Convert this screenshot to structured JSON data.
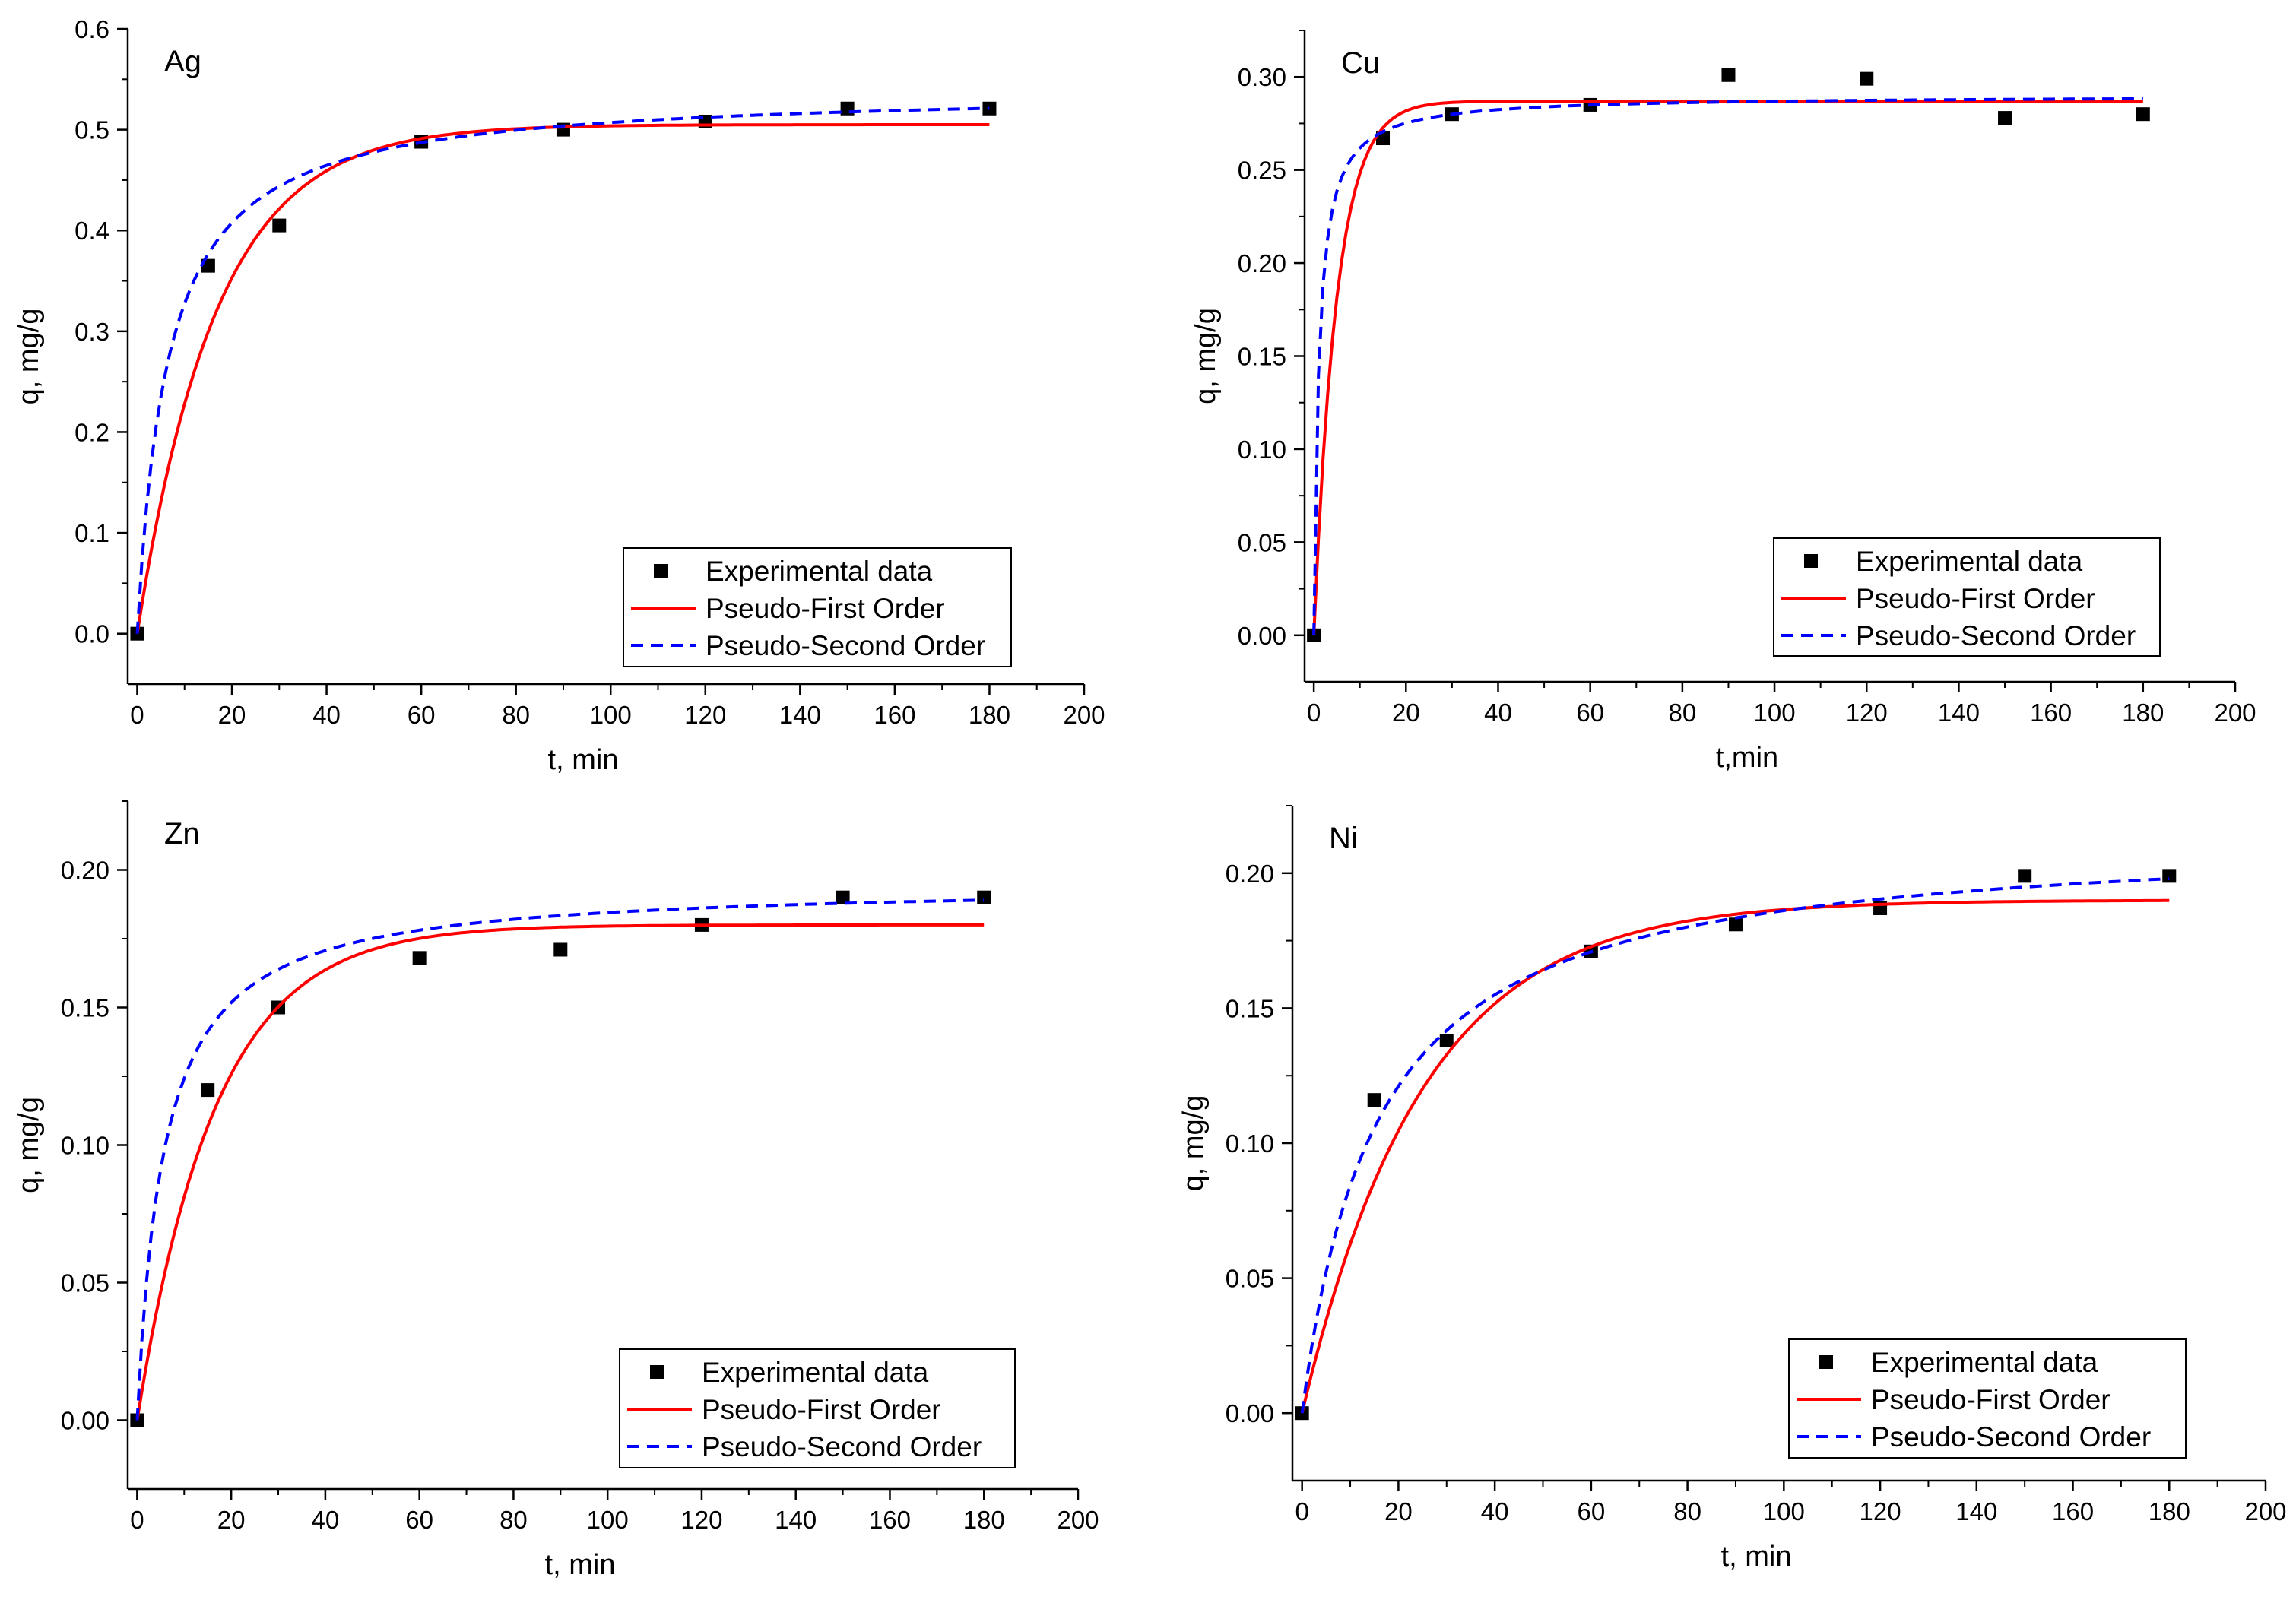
{
  "chart_data": [
    {
      "type": "scatter",
      "title": "Ag",
      "xlabel": "t, min",
      "ylabel": "q, mg/g",
      "xlim": [
        -2,
        200
      ],
      "ylim": [
        -0.05,
        0.6
      ],
      "xticks": [
        0,
        20,
        40,
        60,
        80,
        100,
        120,
        140,
        160,
        180,
        200
      ],
      "yticks": [
        0.0,
        0.1,
        0.2,
        0.3,
        0.4,
        0.5,
        0.6
      ],
      "ytick_labels": [
        "0.0",
        "0.1",
        "0.2",
        "0.3",
        "0.4",
        "0.5",
        "0.6"
      ],
      "legend_position": "bottom-right",
      "series": [
        {
          "name": "Experimental data",
          "kind": "points",
          "color": "#000000",
          "x": [
            0,
            15,
            30,
            60,
            90,
            120,
            150,
            180
          ],
          "y": [
            0.0,
            0.365,
            0.405,
            0.488,
            0.5,
            0.508,
            0.521,
            0.521
          ]
        },
        {
          "name": "Pseudo-First Order",
          "kind": "line",
          "color": "#ff0000",
          "qe": 0.505,
          "k": 0.06
        },
        {
          "name": "Pseudo-Second Order",
          "kind": "dashed",
          "color": "#0000ff",
          "qe": 0.54,
          "k": 0.285
        }
      ]
    },
    {
      "type": "scatter",
      "title": "Cu",
      "xlabel": "t,min",
      "ylabel": "q, mg/g",
      "xlim": [
        -2,
        200
      ],
      "ylim": [
        -0.025,
        0.325
      ],
      "xticks": [
        0,
        20,
        40,
        60,
        80,
        100,
        120,
        140,
        160,
        180,
        200
      ],
      "yticks": [
        0.0,
        0.05,
        0.1,
        0.15,
        0.2,
        0.25,
        0.3
      ],
      "ytick_labels": [
        "0.00",
        "0.05",
        "0.10",
        "0.15",
        "0.20",
        "0.25",
        "0.30"
      ],
      "legend_position": "bottom-right",
      "series": [
        {
          "name": "Experimental data",
          "kind": "points",
          "color": "#000000",
          "x": [
            0,
            15,
            30,
            60,
            90,
            120,
            150,
            180
          ],
          "y": [
            0.0,
            0.267,
            0.28,
            0.285,
            0.301,
            0.299,
            0.278,
            0.28
          ]
        },
        {
          "name": "Pseudo-First Order",
          "kind": "line",
          "color": "#ff0000",
          "qe": 0.287,
          "k": 0.2
        },
        {
          "name": "Pseudo-Second Order",
          "kind": "dashed",
          "color": "#0000ff",
          "qe": 0.29,
          "k": 3.2
        }
      ]
    },
    {
      "type": "scatter",
      "title": "Zn",
      "xlabel": "t, min",
      "ylabel": "q, mg/g",
      "xlim": [
        -2,
        200
      ],
      "ylim": [
        -0.025,
        0.225
      ],
      "xticks": [
        0,
        20,
        40,
        60,
        80,
        100,
        120,
        140,
        160,
        180,
        200
      ],
      "yticks": [
        0.0,
        0.05,
        0.1,
        0.15,
        0.2
      ],
      "ytick_labels": [
        "0.00",
        "0.05",
        "0.10",
        "0.15",
        "0.20"
      ],
      "legend_position": "bottom-right",
      "series": [
        {
          "name": "Experimental data",
          "kind": "points",
          "color": "#000000",
          "x": [
            0,
            15,
            30,
            60,
            90,
            120,
            150,
            180
          ],
          "y": [
            0.0,
            0.12,
            0.15,
            0.168,
            0.171,
            0.18,
            0.19,
            0.19
          ]
        },
        {
          "name": "Pseudo-First Order",
          "kind": "line",
          "color": "#ff0000",
          "qe": 0.18,
          "k": 0.06
        },
        {
          "name": "Pseudo-Second Order",
          "kind": "dashed",
          "color": "#0000ff",
          "qe": 0.195,
          "k": 0.9
        }
      ]
    },
    {
      "type": "scatter",
      "title": "Ni",
      "xlabel": "t, min",
      "ylabel": "q, mg/g",
      "xlim": [
        -2,
        200
      ],
      "ylim": [
        -0.025,
        0.225
      ],
      "xticks": [
        0,
        20,
        40,
        60,
        80,
        100,
        120,
        140,
        160,
        180,
        200
      ],
      "yticks": [
        0.0,
        0.05,
        0.1,
        0.15,
        0.2
      ],
      "ytick_labels": [
        "0.00",
        "0.05",
        "0.10",
        "0.15",
        "0.20"
      ],
      "legend_position": "bottom-right",
      "series": [
        {
          "name": "Experimental data",
          "kind": "points",
          "color": "#000000",
          "x": [
            0,
            15,
            30,
            60,
            90,
            120,
            150,
            180
          ],
          "y": [
            0.0,
            0.116,
            0.138,
            0.171,
            0.181,
            0.187,
            0.199,
            0.199
          ]
        },
        {
          "name": "Pseudo-First Order",
          "kind": "line",
          "color": "#ff0000",
          "qe": 0.19,
          "k": 0.04
        },
        {
          "name": "Pseudo-Second Order",
          "kind": "dashed",
          "color": "#0000ff",
          "qe": 0.215,
          "k": 0.3
        }
      ]
    }
  ]
}
